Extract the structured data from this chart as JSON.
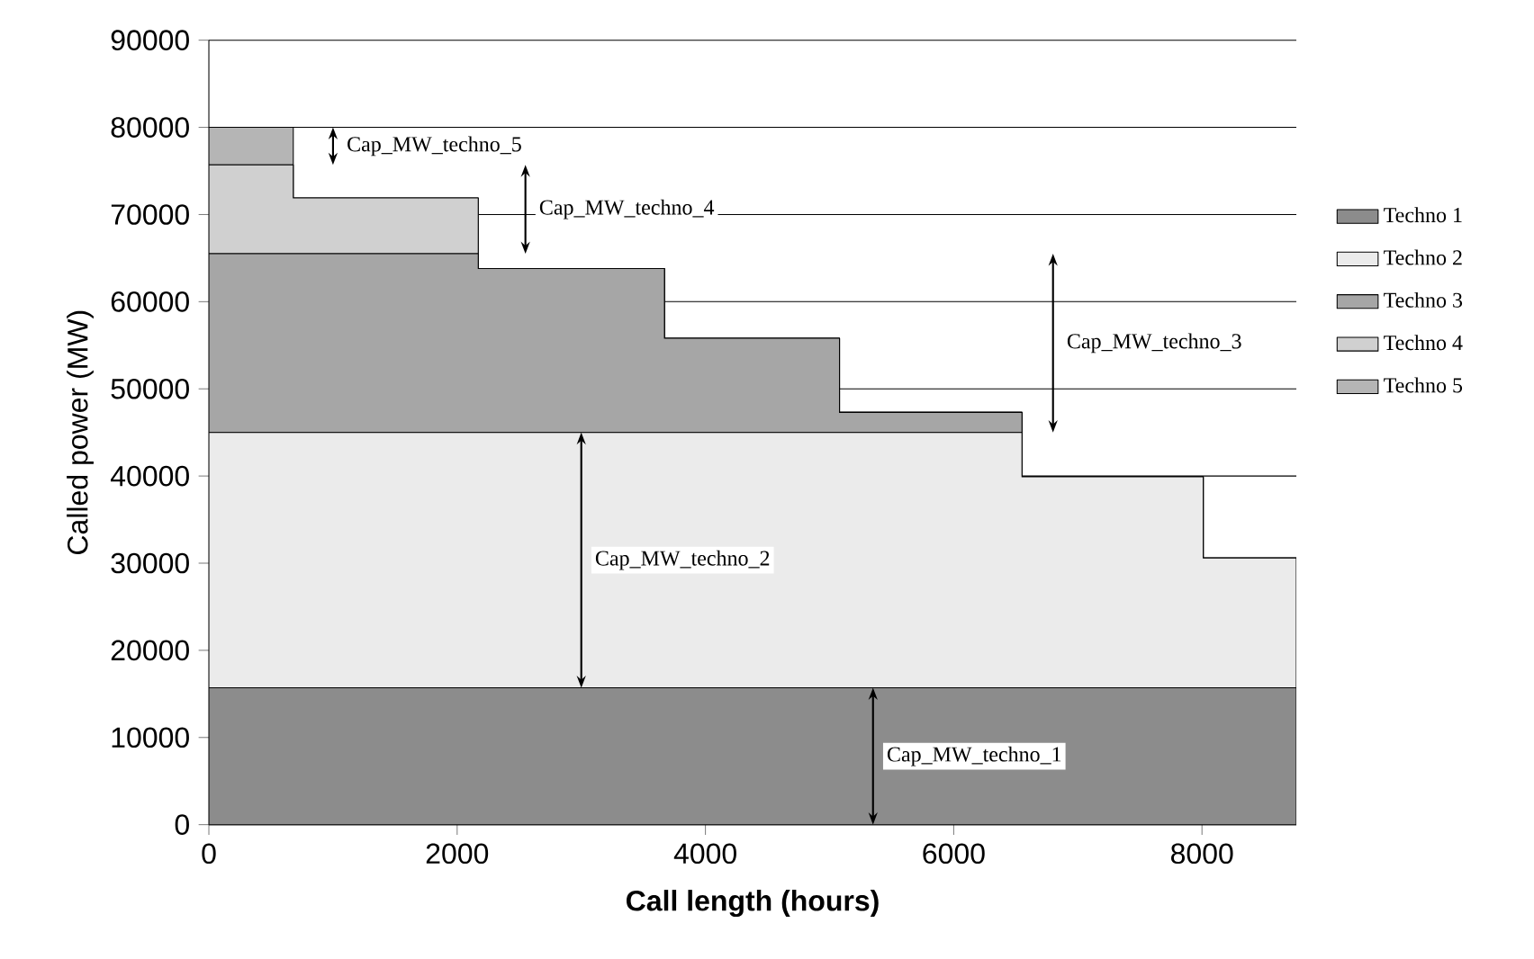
{
  "chart_data": {
    "type": "area",
    "stacked": true,
    "xlabel": "Call length (hours)",
    "ylabel": "Called power (MW)",
    "x": [
      0,
      680,
      680,
      2170,
      2170,
      3670,
      3670,
      5080,
      5080,
      6550,
      6550,
      8010,
      8010,
      8760
    ],
    "series": [
      {
        "name": "Techno 1",
        "color": "#8c8c8c",
        "values": [
          15700,
          15700,
          15700,
          15700,
          15700,
          15700,
          15700,
          15700,
          15700,
          15700,
          15700,
          15700,
          15700,
          15700
        ]
      },
      {
        "name": "Techno 2",
        "color": "#ebebeb",
        "values": [
          29300,
          29300,
          29300,
          29300,
          29300,
          29300,
          29300,
          29300,
          29300,
          29300,
          24200,
          24200,
          14900,
          14900
        ]
      },
      {
        "name": "Techno 3",
        "color": "#a6a6a6",
        "values": [
          20500,
          20500,
          20500,
          20500,
          18800,
          18800,
          10800,
          10800,
          2300,
          2300,
          0,
          0,
          0,
          0
        ]
      },
      {
        "name": "Techno 4",
        "color": "#d0d0d0",
        "values": [
          10200,
          10200,
          6400,
          6400,
          0,
          0,
          0,
          0,
          0,
          0,
          0,
          0,
          0,
          0
        ]
      },
      {
        "name": "Techno 5",
        "color": "#b5b5b5",
        "values": [
          4300,
          4300,
          0,
          0,
          0,
          0,
          0,
          0,
          0,
          0,
          0,
          0,
          0,
          0
        ]
      }
    ],
    "xlim": [
      0,
      8760
    ],
    "xticks": [
      0,
      2000,
      4000,
      6000,
      8000
    ],
    "ylim": [
      0,
      90000
    ],
    "yticks": [
      0,
      10000,
      20000,
      30000,
      40000,
      50000,
      60000,
      70000,
      80000,
      90000
    ],
    "grid": "y",
    "legend": "right",
    "annotations": [
      "Cap_MW_techno_1",
      "Cap_MW_techno_2",
      "Cap_MW_techno_3",
      "Cap_MW_techno_4",
      "Cap_MW_techno_5"
    ]
  }
}
